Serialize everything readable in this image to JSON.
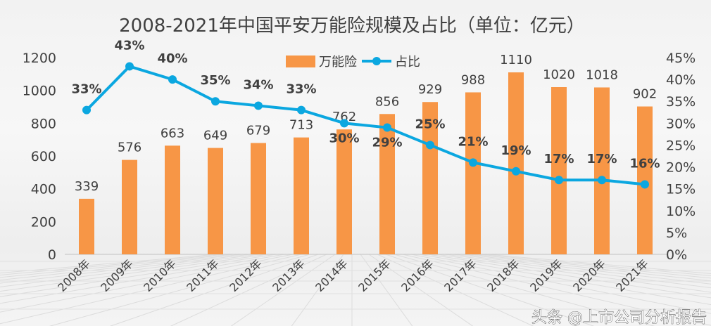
{
  "chart_data": {
    "type": "bar+line",
    "title": "2008-2021年中国平安万能险规模及占比（单位：亿元）",
    "categories": [
      "2008年",
      "2009年",
      "2010年",
      "2011年",
      "2012年",
      "2013年",
      "2014年",
      "2015年",
      "2016年",
      "2017年",
      "2018年",
      "2019年",
      "2020年",
      "2021年"
    ],
    "series": [
      {
        "name": "万能险",
        "type": "bar",
        "axis": "left",
        "color": "#F79646",
        "values": [
          339,
          576,
          663,
          649,
          679,
          713,
          762,
          856,
          929,
          988,
          1110,
          1020,
          1018,
          902
        ],
        "labels": [
          "339",
          "576",
          "663",
          "649",
          "679",
          "713",
          "762",
          "856",
          "929",
          "988",
          "1110",
          "1020",
          "1018",
          "902"
        ]
      },
      {
        "name": "占比",
        "type": "line",
        "axis": "right",
        "color": "#0BA7E0",
        "values": [
          33,
          43,
          40,
          35,
          34,
          33,
          30,
          29,
          25,
          21,
          19,
          17,
          17,
          16
        ],
        "labels": [
          "33%",
          "43%",
          "40%",
          "35%",
          "34%",
          "33%",
          "30%",
          "29%",
          "25%",
          "21%",
          "19%",
          "17%",
          "17%",
          "16%"
        ]
      }
    ],
    "y_left": {
      "range": [
        0,
        1200
      ],
      "ticks": [
        "0",
        "200",
        "400",
        "600",
        "800",
        "1000",
        "1200"
      ]
    },
    "y_right": {
      "range": [
        0,
        45
      ],
      "ticks": [
        "0%",
        "5%",
        "10%",
        "15%",
        "20%",
        "25%",
        "30%",
        "35%",
        "40%",
        "45%"
      ]
    },
    "legend": "top-center",
    "grid": false
  },
  "watermark": "头条 @上市公司分析报告"
}
